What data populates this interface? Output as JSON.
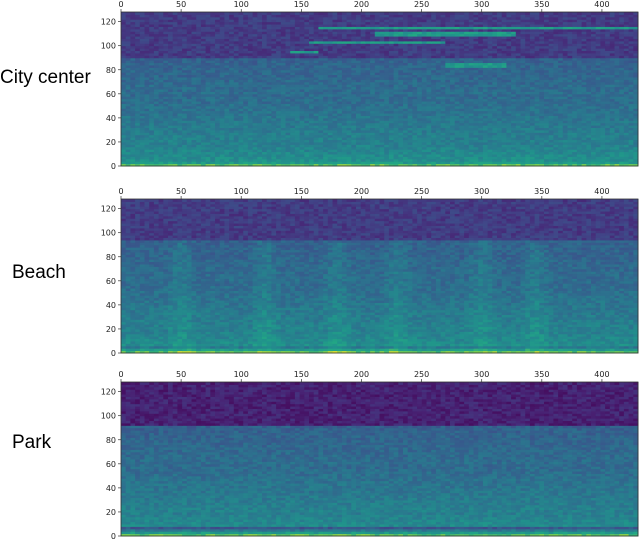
{
  "figure": {
    "colormap": "viridis",
    "colors": {
      "low": "#440154",
      "mid_low": "#3b528b",
      "mid": "#21918c",
      "mid_high": "#5ec962",
      "high": "#fde725"
    }
  },
  "chart_data": [
    {
      "type": "heatmap",
      "row_label": "City center",
      "xlim": [
        0,
        430
      ],
      "ylim": [
        0,
        128
      ],
      "x_ticks": [
        "0",
        "50",
        "100",
        "150",
        "200",
        "250",
        "300",
        "350",
        "400"
      ],
      "y_ticks": [
        "0",
        "20",
        "40",
        "60",
        "80",
        "100",
        "120"
      ],
      "x_tick_values": [
        0,
        50,
        100,
        150,
        200,
        250,
        300,
        350,
        400
      ],
      "y_tick_values": [
        0,
        20,
        40,
        60,
        80,
        100,
        120
      ],
      "grid": false,
      "colorscale": "viridis",
      "features": {
        "bright_low_band_max": 4,
        "dark_band_above": 90,
        "tonal_lines": [
          {
            "x_start": 140,
            "x_end": 165,
            "y": 95
          },
          {
            "x_start": 155,
            "x_end": 270,
            "y": 103
          },
          {
            "x_start": 210,
            "x_end": 330,
            "y": 110
          },
          {
            "x_start": 165,
            "x_end": 430,
            "y": 115
          },
          {
            "x_start": 270,
            "x_end": 320,
            "y": 84
          }
        ]
      }
    },
    {
      "type": "heatmap",
      "row_label": "Beach",
      "xlim": [
        0,
        430
      ],
      "ylim": [
        0,
        128
      ],
      "x_ticks": [
        "0",
        "50",
        "100",
        "150",
        "200",
        "250",
        "300",
        "350",
        "400"
      ],
      "y_ticks": [
        "0",
        "20",
        "40",
        "60",
        "80",
        "100",
        "120"
      ],
      "x_tick_values": [
        0,
        50,
        100,
        150,
        200,
        250,
        300,
        350,
        400
      ],
      "y_tick_values": [
        0,
        20,
        40,
        60,
        80,
        100,
        120
      ],
      "grid": false,
      "colorscale": "viridis",
      "features": {
        "bright_low_band_max": 5,
        "dark_band_above": 95,
        "wave_bursts_x": [
          50,
          120,
          180,
          230,
          300,
          345
        ]
      }
    },
    {
      "type": "heatmap",
      "row_label": "Park",
      "xlim": [
        0,
        430
      ],
      "ylim": [
        0,
        128
      ],
      "x_ticks": [
        "0",
        "50",
        "100",
        "150",
        "200",
        "250",
        "300",
        "350",
        "400"
      ],
      "y_ticks": [
        "0",
        "20",
        "40",
        "60",
        "80",
        "100",
        "120"
      ],
      "x_tick_values": [
        0,
        50,
        100,
        150,
        200,
        250,
        300,
        350,
        400
      ],
      "y_tick_values": [
        0,
        20,
        40,
        60,
        80,
        100,
        120
      ],
      "grid": false,
      "colorscale": "viridis",
      "features": {
        "bright_low_band_max": 7,
        "dark_band_above": 95
      }
    }
  ]
}
